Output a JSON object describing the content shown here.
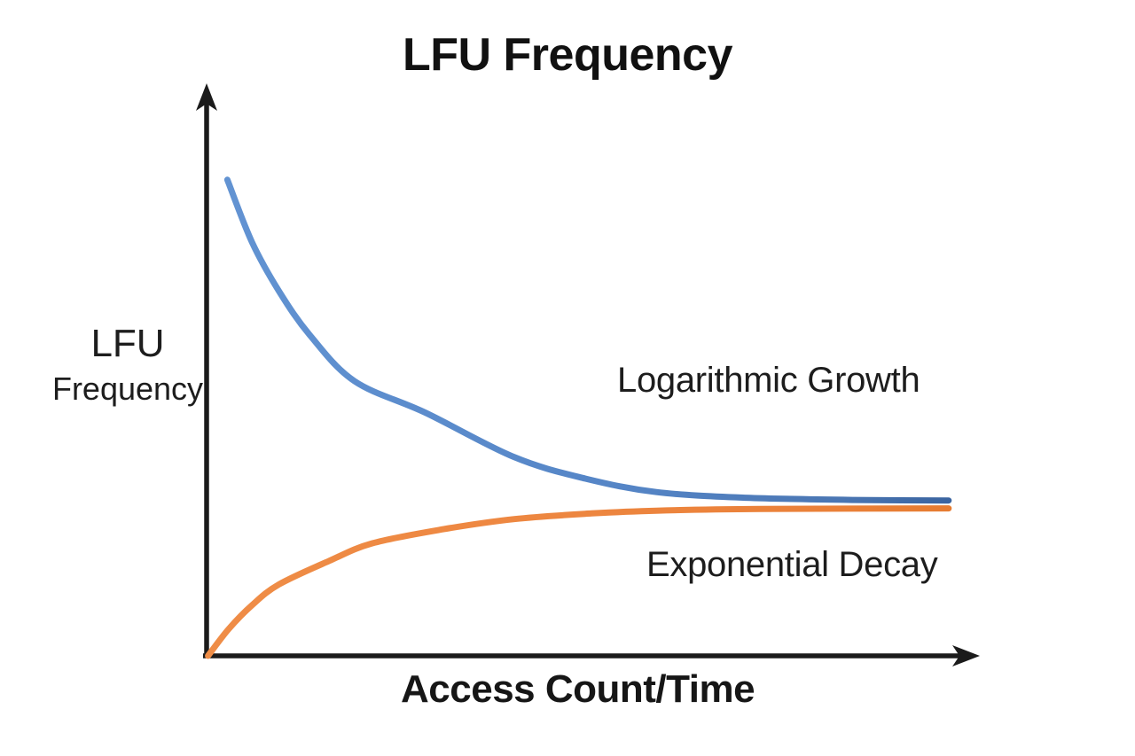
{
  "page": {
    "background": "#ffffff"
  },
  "chart_data": {
    "type": "line",
    "title": "LFU Frequency",
    "xlabel": "Access Count/Time",
    "ylabel": "LFU Frequency",
    "ylabel_lines": [
      "LFU",
      "Frequency"
    ],
    "axis_color": "#1b1b1b",
    "text_color": "#1d1d1d",
    "grid": false,
    "ticks": "none",
    "legend_position": "inline-curve-annotations",
    "xlim": [
      0,
      1
    ],
    "ylim": [
      0,
      1
    ],
    "series": [
      {
        "name": "Logarithmic Growth",
        "color": "#5585c6",
        "color_stops": [
          "#6293d2",
          "#5585c6",
          "#4a76b3",
          "#3a64a0"
        ],
        "points": [
          [
            0.028,
            0.846
          ],
          [
            0.06,
            0.735
          ],
          [
            0.095,
            0.648
          ],
          [
            0.135,
            0.57
          ],
          [
            0.193,
            0.488
          ],
          [
            0.285,
            0.432
          ],
          [
            0.4,
            0.353
          ],
          [
            0.492,
            0.315
          ],
          [
            0.584,
            0.291
          ],
          [
            0.7,
            0.281
          ],
          [
            0.84,
            0.277
          ],
          [
            0.963,
            0.276
          ]
        ]
      },
      {
        "name": "Exponential Decay",
        "color": "#ed8640",
        "color_stops": [
          "#ef8d47",
          "#ed8640",
          "#ea8038",
          "#e67c31"
        ],
        "points": [
          [
            0.003,
            0.0
          ],
          [
            0.03,
            0.048
          ],
          [
            0.06,
            0.09
          ],
          [
            0.095,
            0.127
          ],
          [
            0.159,
            0.168
          ],
          [
            0.216,
            0.2
          ],
          [
            0.308,
            0.225
          ],
          [
            0.4,
            0.243
          ],
          [
            0.5,
            0.253
          ],
          [
            0.584,
            0.258
          ],
          [
            0.72,
            0.261
          ],
          [
            0.963,
            0.262
          ]
        ]
      }
    ]
  }
}
